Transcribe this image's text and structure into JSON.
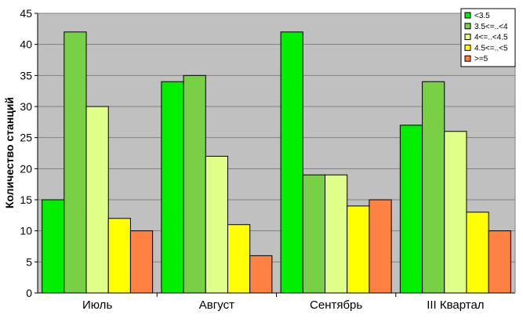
{
  "chart_data": {
    "type": "bar",
    "title": "",
    "xlabel": "",
    "ylabel": "Количество станций",
    "ylim": [
      0,
      45
    ],
    "ytick_step": 5,
    "grid": true,
    "legend_position": "top-right",
    "categories": [
      "Июль",
      "Август",
      "Сентябрь",
      "III Квартал"
    ],
    "series": [
      {
        "name": "<3.5",
        "color": "#00ee00",
        "values": [
          15,
          34,
          42,
          27
        ]
      },
      {
        "name": "3.5<=..<4",
        "color": "#77d046",
        "values": [
          42,
          35,
          19,
          34
        ]
      },
      {
        "name": "4<=..<4.5",
        "color": "#e0ff88",
        "values": [
          30,
          22,
          19,
          26
        ]
      },
      {
        "name": "4.5<=..<5",
        "color": "#ffff00",
        "values": [
          12,
          11,
          14,
          13
        ]
      },
      {
        "name": ">=5",
        "color": "#ff8040",
        "values": [
          10,
          6,
          15,
          10
        ]
      }
    ],
    "plot_background": "#c0c0c0"
  }
}
